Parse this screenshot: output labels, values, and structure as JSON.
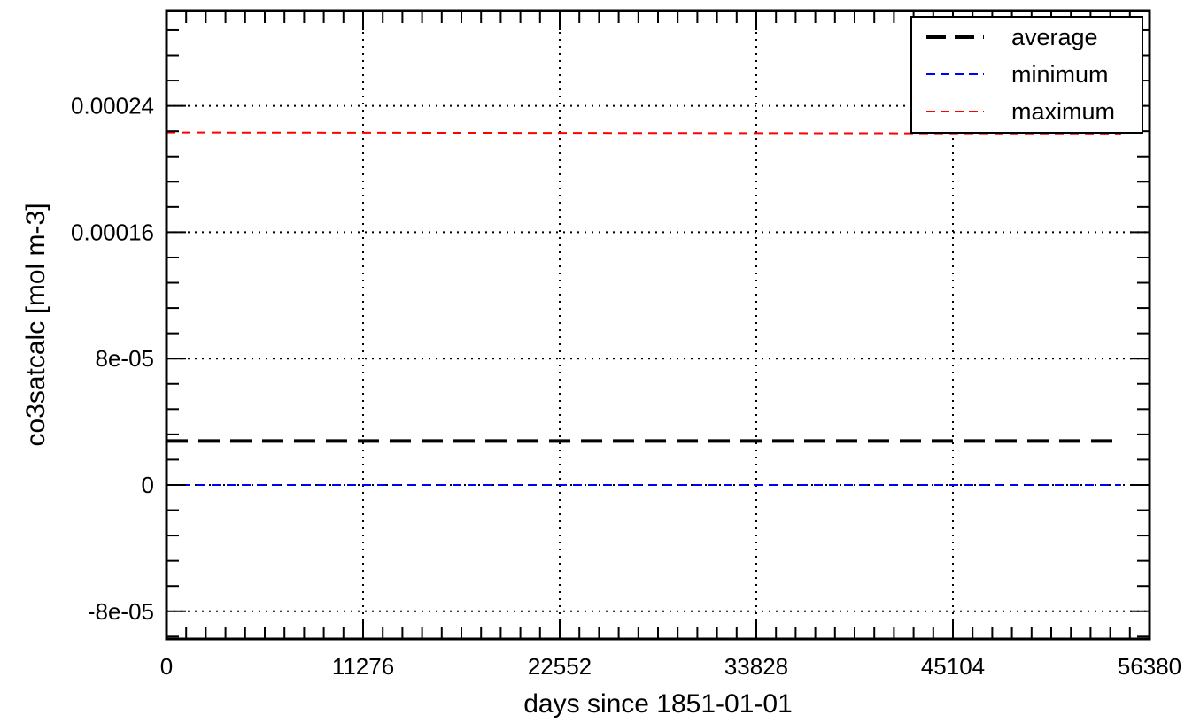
{
  "chart_data": {
    "type": "line",
    "xlabel": "days since 1851-01-01",
    "ylabel": "co3satcalc [mol m-3]",
    "xlim": [
      0,
      56380
    ],
    "ylim": [
      -9.75e-05,
      0.0003003
    ],
    "x_ticks": [
      0,
      11276,
      22552,
      33828,
      45104,
      56380
    ],
    "x_tick_labels": [
      "0",
      "11276",
      "22552",
      "33828",
      "45104",
      "56380"
    ],
    "y_ticks": [
      -8e-05,
      0,
      8e-05,
      0.00016,
      0.00024
    ],
    "y_tick_labels": [
      "-8e-05",
      "0",
      "8e-05",
      "0.00016",
      "0.00024"
    ],
    "grid": true,
    "legend_position": "top-right",
    "series": [
      {
        "name": "average",
        "color": "#000000",
        "style": "long-dash",
        "x": [
          0,
          54750
        ],
        "y": [
          2.78e-05,
          2.78e-05
        ]
      },
      {
        "name": "minimum",
        "color": "#0000ff",
        "style": "short-dash",
        "x": [
          0,
          54750
        ],
        "y": [
          0.0,
          0.0
        ]
      },
      {
        "name": "maximum",
        "color": "#ff0000",
        "style": "short-dash",
        "x": [
          0,
          54750
        ],
        "y": [
          0.0002232,
          0.0002225
        ]
      }
    ]
  }
}
